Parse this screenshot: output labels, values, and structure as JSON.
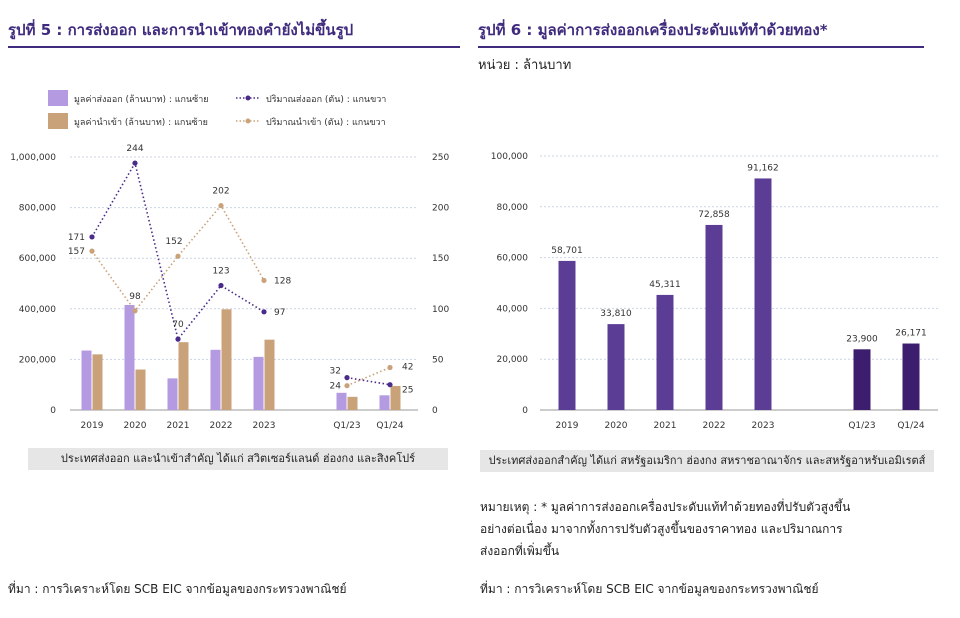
{
  "figure5": {
    "title": "รูปที่ 5 : การส่งออก และการนำเข้าทองคำยังไม่ขึ้นรูป",
    "caption": "ประเทศส่งออก และนำเข้าสำคัญ ได้แก่ สวิตเซอร์แลนด์ ฮ่องกง และสิงคโปร์",
    "source": "ที่มา : การวิเคราะห์โดย SCB EIC จากข้อมูลของกระทรวงพาณิชย์"
  },
  "figure6": {
    "title": "รูปที่ 6 : มูลค่าการส่งออกเครื่องประดับแท้ทำด้วยทอง*",
    "unit": "หน่วย : ล้านบาท",
    "caption": "ประเทศส่งออกสำคัญ ได้แก่ สหรัฐอเมริกา ฮ่องกง สหราชอาณาจักร และสหรัฐอาหรับเอมิเรตส์",
    "note_line1": "หมายเหตุ : * มูลค่าการส่งออกเครื่องประดับแท้ทำด้วยทองที่ปรับตัวสูงขึ้น",
    "note_line2": "อย่างต่อเนื่อง มาจากทั้งการปรับตัวสูงขึ้นของราคาทอง และปริมาณการ",
    "note_line3": "ส่งออกที่เพิ่มขึ้น",
    "source": "ที่มา : การวิเคราะห์โดย SCB EIC จากข้อมูลของกระทรวงพาณิชย์"
  },
  "chart_data": [
    {
      "type": "bar",
      "categories": [
        "2019",
        "2020",
        "2021",
        "2022",
        "2023",
        "Q1/23",
        "Q1/24"
      ],
      "series": [
        {
          "name": "มูลค่าส่งออก (ล้านบาท) : แกนซ้าย",
          "kind": "bar",
          "axis": "left",
          "color": "#b49ae0",
          "values": [
            235000,
            415000,
            125000,
            238000,
            210000,
            68000,
            58000
          ]
        },
        {
          "name": "มูลค่านำเข้า (ล้านบาท) : แกนซ้าย",
          "kind": "bar",
          "axis": "left",
          "color": "#c9a27a",
          "values": [
            220000,
            160000,
            268000,
            398000,
            278000,
            52000,
            95000
          ]
        },
        {
          "name": "ปริมาณส่งออก (ตัน) : แกนขวา",
          "kind": "dotted-line",
          "axis": "right",
          "color": "#4a2a8a",
          "values": [
            171,
            244,
            70,
            123,
            97,
            32,
            25
          ],
          "labels": [
            "171",
            "244",
            "70",
            "123",
            "97",
            "32",
            "25"
          ]
        },
        {
          "name": "ปริมาณนำเข้า (ตัน) : แกนขวา",
          "kind": "dotted-line",
          "axis": "right",
          "color": "#c9a27a",
          "values": [
            157,
            98,
            152,
            202,
            128,
            24,
            42
          ],
          "labels": [
            "157",
            "98",
            "152",
            "202",
            "128",
            "24",
            "42"
          ]
        }
      ],
      "ylim": [
        0,
        1000000
      ],
      "y_ticks": [
        "0",
        "200,000",
        "400,000",
        "600,000",
        "800,000",
        "1,000,000"
      ],
      "y2lim": [
        0,
        250
      ],
      "y2_ticks": [
        "0",
        "50",
        "100",
        "150",
        "200",
        "250"
      ],
      "legend_position": "top",
      "grid": true
    },
    {
      "type": "bar",
      "categories": [
        "2019",
        "2020",
        "2021",
        "2022",
        "2023",
        "Q1/23",
        "Q1/24"
      ],
      "values": [
        58701,
        33810,
        45311,
        72858,
        91162,
        23900,
        26171
      ],
      "value_labels": [
        "58,701",
        "33,810",
        "45,311",
        "72,858",
        "91,162",
        "23,900",
        "26,171"
      ],
      "colors": [
        "#5b3d96",
        "#5b3d96",
        "#5b3d96",
        "#5b3d96",
        "#5b3d96",
        "#3d1d6e",
        "#3d1d6e"
      ],
      "ylim": [
        0,
        100000
      ],
      "y_ticks": [
        "0",
        "20,000",
        "40,000",
        "60,000",
        "80,000",
        "100,000"
      ],
      "grid": true
    }
  ]
}
